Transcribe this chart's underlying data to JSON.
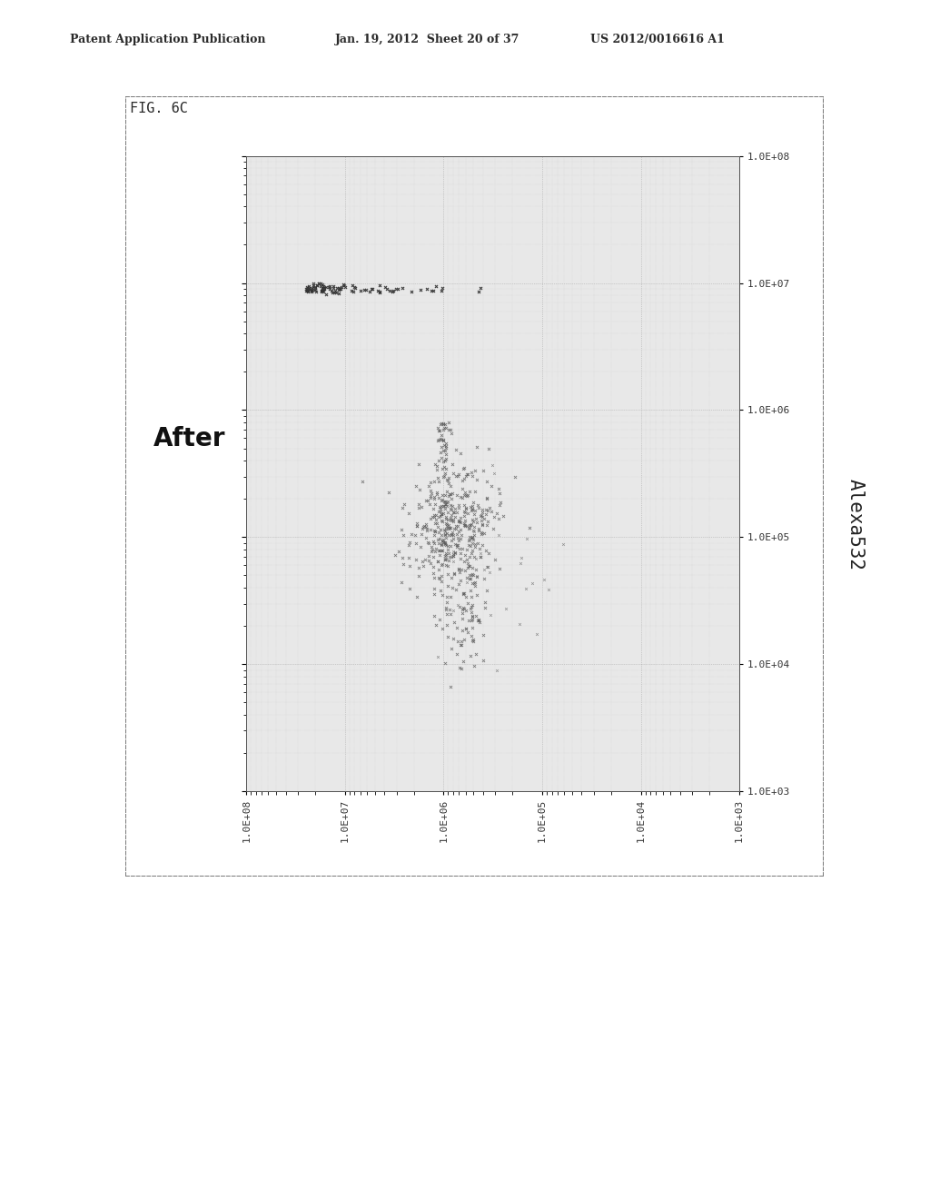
{
  "header_left": "Patent Application Publication",
  "header_mid": "Jan. 19, 2012  Sheet 20 of 37",
  "header_right": "US 2012/0016616 A1",
  "fig_label": "FIG. 6C",
  "plot_title": "After",
  "ylabel": "Alexa532",
  "xlog_min": 3,
  "xlog_max": 8,
  "ylog_min": 3,
  "ylog_max": 8,
  "x_tick_labels": [
    "1.0E+08",
    "1.0E+07",
    "1.0E+06",
    "1.0E+05",
    "1.0E+04",
    "1.0E+03"
  ],
  "y_tick_labels": [
    "1.0E+08",
    "1.0E+07",
    "1.0E+06",
    "1.0E+05",
    "1.0E+04",
    "1.0E+03"
  ],
  "background_color": "#ffffff",
  "plot_bg_color": "#e8e8e8",
  "marker_color": "#555555",
  "scatter_seed": 42,
  "n_cluster": 400,
  "n_line": 100
}
